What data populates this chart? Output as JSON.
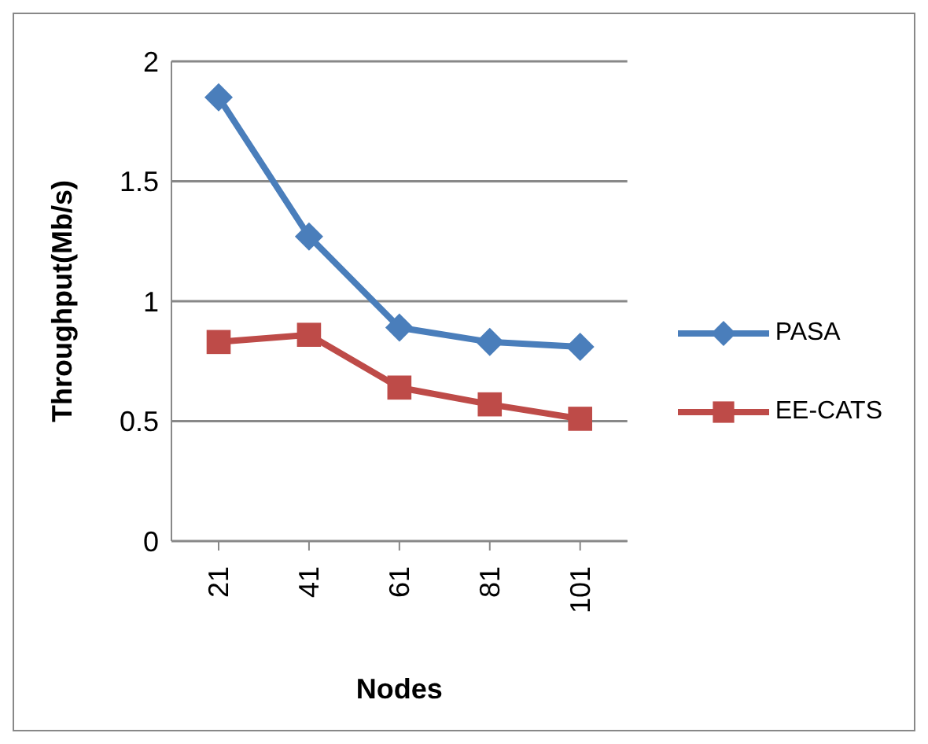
{
  "chart_data": {
    "type": "line",
    "xlabel": "Nodes",
    "ylabel": "Throughput(Mb/s)",
    "categories": [
      "21",
      "41",
      "61",
      "81",
      "101"
    ],
    "series": [
      {
        "name": "PASA",
        "color": "#4a7ebb",
        "marker": "diamond",
        "values": [
          1.85,
          1.27,
          0.89,
          0.83,
          0.81
        ]
      },
      {
        "name": "EE-CATS",
        "color": "#be4b48",
        "marker": "square",
        "values": [
          0.83,
          0.86,
          0.64,
          0.57,
          0.51
        ]
      }
    ],
    "ylim": [
      0,
      2
    ],
    "yticks": [
      0,
      0.5,
      1,
      1.5,
      2
    ],
    "grid": "y",
    "legend": "right"
  }
}
